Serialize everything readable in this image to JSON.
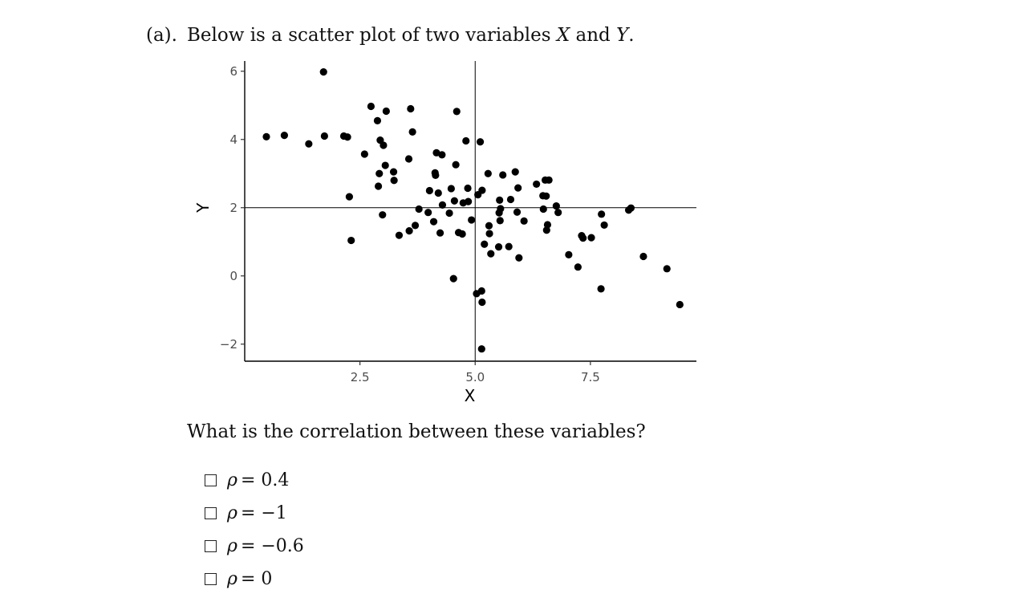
{
  "header": {
    "part_label": "(a).",
    "text_before": "Below is a scatter plot of two variables",
    "var_x": "X",
    "and": "and",
    "var_y": "Y",
    "period": "."
  },
  "question": "What is the correlation between these variables?",
  "options": [
    {
      "symbol": "ρ",
      "text": "= 0.4"
    },
    {
      "symbol": "ρ",
      "text": "= −1"
    },
    {
      "symbol": "ρ",
      "text": "= −0.6"
    },
    {
      "symbol": "ρ",
      "text": "= 0"
    }
  ],
  "chart_data": {
    "type": "scatter",
    "xlabel": "X",
    "ylabel": "Y",
    "xlim": [
      0.0,
      9.8
    ],
    "ylim": [
      -2.5,
      6.3
    ],
    "xticks": [
      2.5,
      5.0,
      7.5
    ],
    "xtick_labels": [
      "2.5",
      "5.0",
      "7.5"
    ],
    "yticks": [
      -2,
      0,
      2,
      4,
      6
    ],
    "ytick_labels": [
      "−2",
      "0",
      "2",
      "4",
      "6"
    ],
    "reference_lines": {
      "vline_x": 5.0,
      "hline_y": 2.0
    },
    "grid": false,
    "point_color": "#000000",
    "points": [
      [
        0.47,
        4.08
      ],
      [
        0.86,
        4.12
      ],
      [
        1.39,
        3.87
      ],
      [
        1.71,
        5.98
      ],
      [
        1.73,
        4.1
      ],
      [
        2.15,
        4.1
      ],
      [
        2.23,
        4.07
      ],
      [
        2.27,
        2.32
      ],
      [
        2.31,
        1.04
      ],
      [
        2.6,
        3.57
      ],
      [
        2.74,
        4.97
      ],
      [
        2.88,
        4.55
      ],
      [
        2.9,
        2.63
      ],
      [
        2.92,
        3.0
      ],
      [
        2.94,
        3.98
      ],
      [
        2.99,
        1.79
      ],
      [
        3.01,
        3.83
      ],
      [
        3.05,
        3.24
      ],
      [
        3.07,
        4.83
      ],
      [
        3.23,
        3.05
      ],
      [
        3.24,
        2.8
      ],
      [
        3.35,
        1.19
      ],
      [
        3.56,
        3.43
      ],
      [
        3.57,
        1.32
      ],
      [
        3.6,
        4.9
      ],
      [
        3.64,
        4.22
      ],
      [
        3.7,
        1.48
      ],
      [
        3.78,
        1.96
      ],
      [
        3.98,
        1.86
      ],
      [
        4.01,
        2.5
      ],
      [
        4.1,
        1.59
      ],
      [
        4.13,
        3.02
      ],
      [
        4.14,
        2.95
      ],
      [
        4.16,
        3.61
      ],
      [
        4.2,
        2.43
      ],
      [
        4.24,
        1.26
      ],
      [
        4.28,
        3.55
      ],
      [
        4.29,
        2.08
      ],
      [
        4.44,
        1.84
      ],
      [
        4.48,
        2.56
      ],
      [
        4.53,
        -0.08
      ],
      [
        4.55,
        2.2
      ],
      [
        4.58,
        3.26
      ],
      [
        4.6,
        4.82
      ],
      [
        4.64,
        1.27
      ],
      [
        4.72,
        1.23
      ],
      [
        4.74,
        2.14
      ],
      [
        4.8,
        3.96
      ],
      [
        4.84,
        2.57
      ],
      [
        4.85,
        2.18
      ],
      [
        4.92,
        1.64
      ],
      [
        5.03,
        -0.52
      ],
      [
        5.06,
        2.38
      ],
      [
        5.11,
        3.93
      ],
      [
        5.14,
        -0.44
      ],
      [
        5.14,
        -2.14
      ],
      [
        5.15,
        2.51
      ],
      [
        5.15,
        -0.77
      ],
      [
        5.2,
        0.93
      ],
      [
        5.28,
        3.0
      ],
      [
        5.3,
        1.47
      ],
      [
        5.31,
        1.24
      ],
      [
        5.34,
        0.65
      ],
      [
        5.51,
        0.85
      ],
      [
        5.52,
        1.85
      ],
      [
        5.53,
        2.22
      ],
      [
        5.54,
        1.62
      ],
      [
        5.55,
        1.97
      ],
      [
        5.6,
        2.96
      ],
      [
        5.73,
        0.86
      ],
      [
        5.77,
        2.24
      ],
      [
        5.87,
        3.05
      ],
      [
        5.91,
        1.87
      ],
      [
        5.93,
        2.58
      ],
      [
        5.95,
        0.53
      ],
      [
        6.06,
        1.61
      ],
      [
        6.33,
        2.69
      ],
      [
        6.47,
        2.35
      ],
      [
        6.48,
        1.96
      ],
      [
        6.52,
        2.81
      ],
      [
        6.54,
        2.34
      ],
      [
        6.55,
        1.34
      ],
      [
        6.57,
        1.5
      ],
      [
        6.6,
        2.81
      ],
      [
        6.76,
        2.05
      ],
      [
        6.8,
        1.86
      ],
      [
        7.03,
        0.62
      ],
      [
        7.23,
        0.26
      ],
      [
        7.31,
        1.18
      ],
      [
        7.34,
        1.11
      ],
      [
        7.52,
        1.12
      ],
      [
        7.73,
        -0.38
      ],
      [
        7.74,
        1.81
      ],
      [
        7.8,
        1.49
      ],
      [
        8.33,
        1.93
      ],
      [
        8.38,
        1.99
      ],
      [
        8.65,
        0.57
      ],
      [
        9.16,
        0.21
      ],
      [
        9.44,
        -0.84
      ]
    ]
  }
}
